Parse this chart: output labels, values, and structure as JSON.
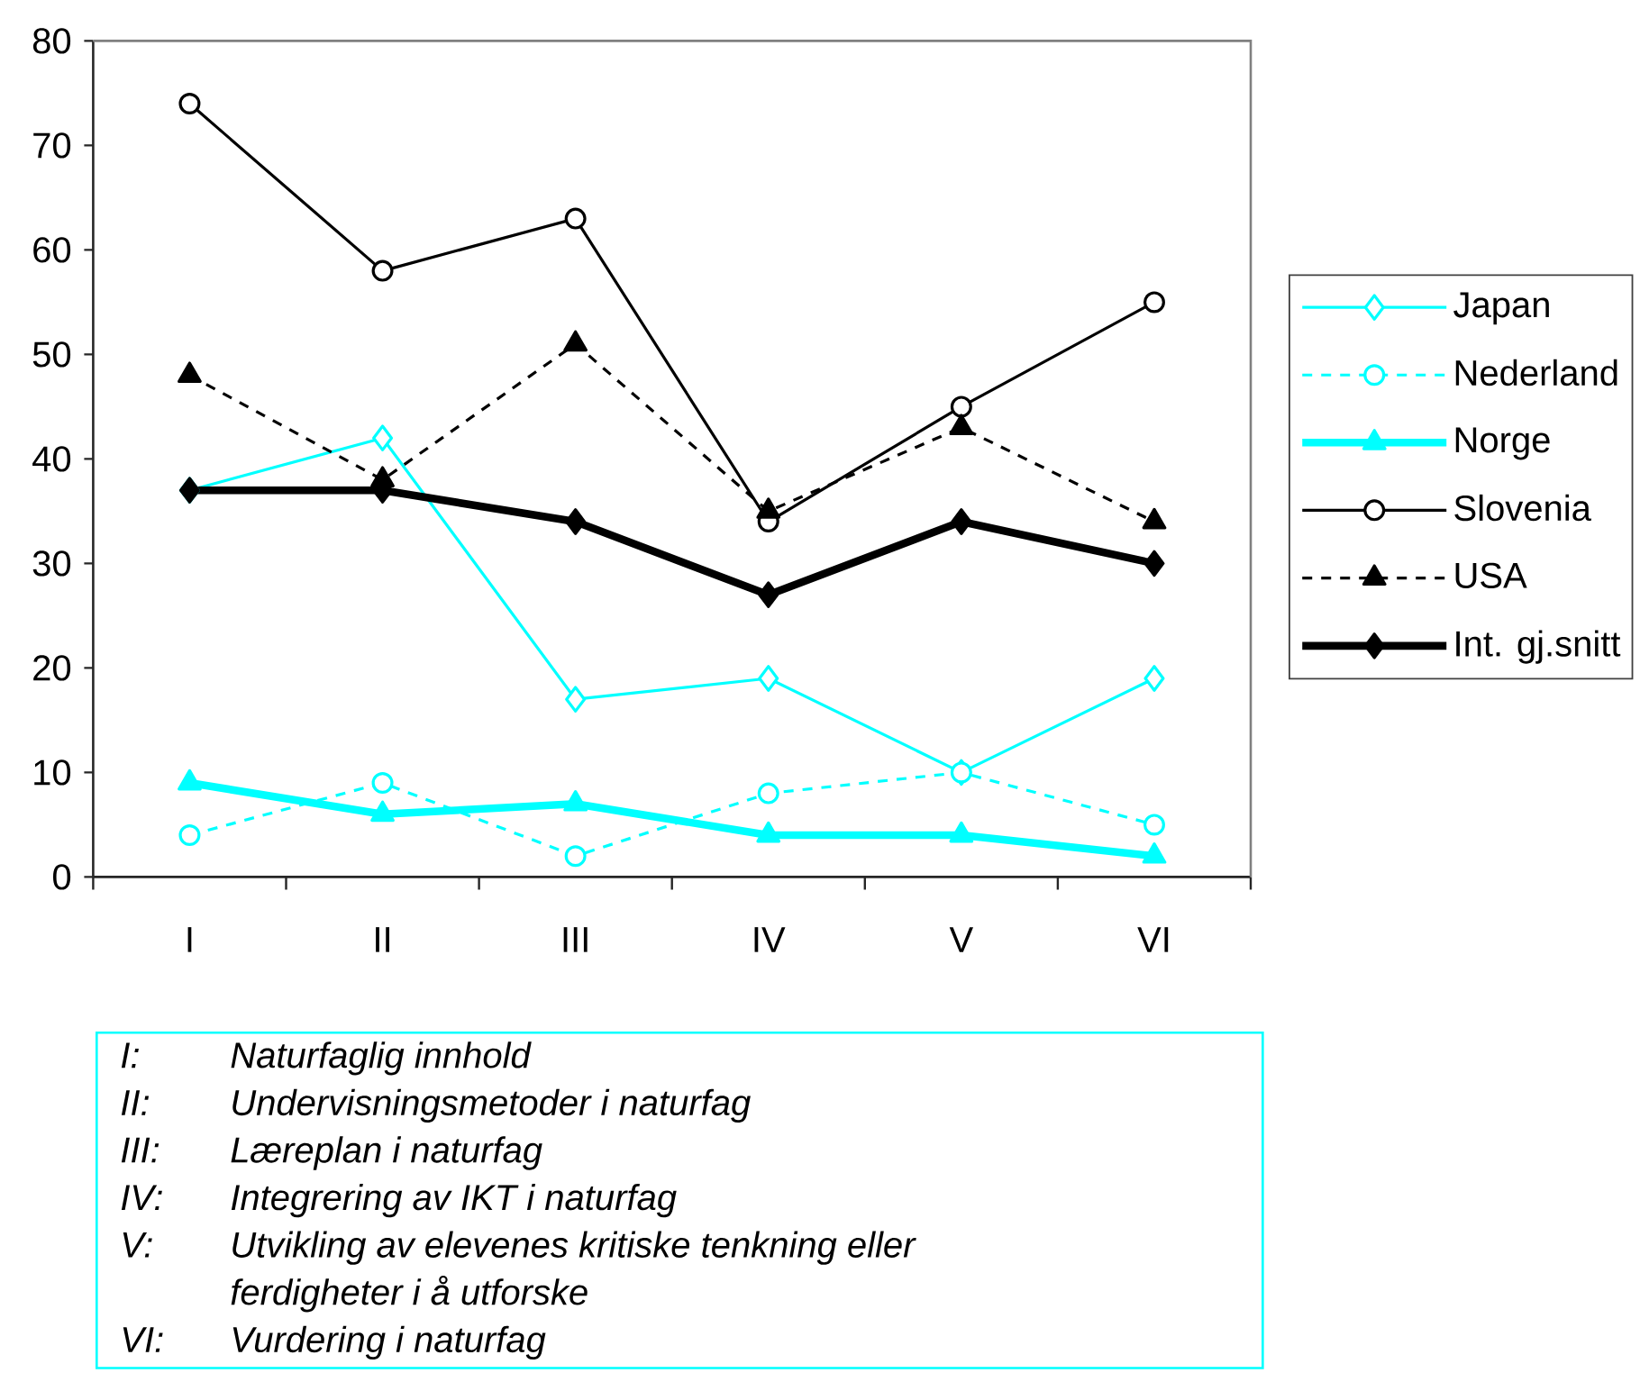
{
  "chart_data": {
    "type": "line",
    "categories": [
      "I",
      "II",
      "III",
      "IV",
      "V",
      "VI"
    ],
    "ylim": [
      0,
      80
    ],
    "yticks": [
      0,
      10,
      20,
      30,
      40,
      50,
      60,
      70,
      80
    ],
    "legend": "right",
    "series": [
      {
        "name": "Japan",
        "color": "#00ffff",
        "marker": "diamond",
        "line_style": "solid",
        "values": [
          37,
          42,
          17,
          19,
          10,
          19
        ]
      },
      {
        "name": "Nederland",
        "color": "#00ffff",
        "marker": "circle",
        "line_style": "dashed",
        "values": [
          4,
          9,
          2,
          8,
          10,
          5
        ]
      },
      {
        "name": "Norge",
        "color": "#00ffff",
        "marker": "triangle",
        "line_style": "solid",
        "values": [
          9,
          6,
          7,
          4,
          4,
          2
        ]
      },
      {
        "name": "Slovenia",
        "color": "#000000",
        "marker": "circle",
        "line_style": "solid",
        "values": [
          74,
          58,
          63,
          34,
          45,
          55
        ]
      },
      {
        "name": "USA",
        "color": "#000000",
        "marker": "triangle",
        "line_style": "dashed",
        "values": [
          48,
          38,
          51,
          35,
          43,
          34
        ]
      },
      {
        "name": "Int. gj.snitt",
        "color": "#000000",
        "marker": "diamond",
        "line_style": "solid",
        "values": [
          37,
          37,
          34,
          27,
          34,
          30
        ]
      }
    ],
    "annotations": [
      "I:",
      "Naturfaglig innhold",
      "II:",
      "Undervisningsmetoder i naturfag",
      "III:",
      "Læreplan i naturfag",
      "IV:",
      "Integrering av IKT i naturfag",
      "V:",
      "Utvikling av elevenes kritiske tenkning eller ferdigheter i å utforske",
      "VI:",
      "Vurdering i naturfag"
    ]
  }
}
